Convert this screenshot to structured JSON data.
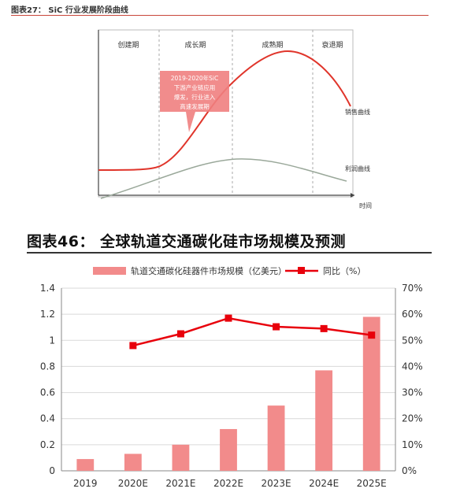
{
  "figure1": {
    "title": "图表27： SiC 行业发展阶段曲线",
    "stages": [
      "创建期",
      "成长期",
      "成熟期",
      "衰退期"
    ],
    "callout_lines": [
      "2019-2020年SiC",
      "下游产业链应用",
      "爆发，行业进入",
      "高速发展期"
    ],
    "sales_curve_label": "销售曲线",
    "profit_curve_label": "利润曲线",
    "x_axis_label": "时间",
    "colors": {
      "sales": "#e0352b",
      "profit": "#9aa89a",
      "callout": "#f08080"
    }
  },
  "figure2": {
    "title": "图表46：  全球轨道交通碳化硅市场规模及预测"
  },
  "chart_data": {
    "type": "bar",
    "categories": [
      "2019",
      "2020E",
      "2021E",
      "2022E",
      "2023E",
      "2024E",
      "2025E"
    ],
    "series": [
      {
        "name": "轨道交通碳化硅器件市场规模（亿美元）",
        "type": "bar",
        "axis": "left",
        "values": [
          0.09,
          0.13,
          0.2,
          0.32,
          0.5,
          0.77,
          1.18
        ],
        "color": "#f28b8b"
      },
      {
        "name": "同比（%）",
        "type": "line",
        "axis": "right",
        "values": [
          null,
          48,
          52.5,
          58.5,
          55.2,
          54.5,
          52
        ],
        "color": "#e8000b"
      }
    ],
    "y_left": {
      "ticks": [
        "0",
        "0.2",
        "0.4",
        "0.6",
        "0.8",
        "1",
        "1.2",
        "1.4"
      ],
      "ylim": [
        0,
        1.4
      ]
    },
    "y_right": {
      "ticks": [
        "0%",
        "10%",
        "20%",
        "30%",
        "40%",
        "50%",
        "60%",
        "70%"
      ],
      "ylim": [
        0,
        70
      ]
    },
    "grid": true,
    "legend_position": "top"
  }
}
